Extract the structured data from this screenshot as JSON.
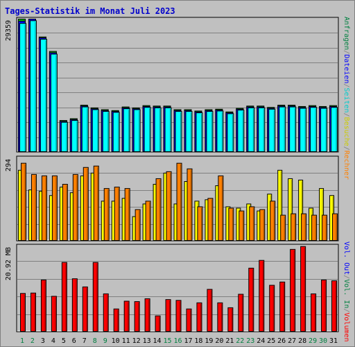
{
  "chart_data": {
    "type": "bar",
    "title": "Tages-Statistik im Monat Juli 2023",
    "categories": [
      "1",
      "2",
      "3",
      "4",
      "5",
      "6",
      "7",
      "8",
      "9",
      "10",
      "11",
      "12",
      "13",
      "14",
      "15",
      "16",
      "17",
      "18",
      "19",
      "20",
      "21",
      "22",
      "23",
      "24",
      "25",
      "26",
      "27",
      "28",
      "29",
      "30",
      "31"
    ],
    "weekend_days": [
      "1",
      "2",
      "8",
      "9",
      "15",
      "16",
      "22",
      "23",
      "29",
      "30"
    ],
    "colors": {
      "title": "#0000cc",
      "weekday_label": "#000000",
      "weekend_label": "#008040",
      "anfragen": "#00c000",
      "dateien": "#0000ff",
      "seiten": "#00ffff",
      "besuche": "#ffff00",
      "rechner": "#ff8000",
      "vol_out": "#0000ff",
      "vol_in": "#008040",
      "volumen": "#ff0000"
    },
    "right_legend": {
      "panel1": [
        {
          "text": "Anfragen",
          "color": "#008040"
        },
        {
          "text": "/",
          "color": "#808080"
        },
        {
          "text": "Dateien",
          "color": "#0000ff"
        },
        {
          "text": "/",
          "color": "#808080"
        },
        {
          "text": "Seiten",
          "color": "#00cccc"
        },
        {
          "text": "/",
          "color": "#808080"
        },
        {
          "text": "Besuche",
          "color": "#cccc00"
        },
        {
          "text": "/",
          "color": "#808080"
        },
        {
          "text": "Rechner",
          "color": "#ff8000"
        }
      ],
      "panel3": [
        {
          "text": "Vol. Out",
          "color": "#0000ff"
        },
        {
          "text": "/",
          "color": "#808080"
        },
        {
          "text": "Vol. In",
          "color": "#008040"
        },
        {
          "text": "/",
          "color": "#808080"
        },
        {
          "text": "Volumen",
          "color": "#ff0000"
        }
      ]
    },
    "panels": [
      {
        "id": "requests",
        "max_label": "29359",
        "ymax": 29359,
        "series": [
          {
            "name": "Anfragen",
            "values": [
              29359,
              29359,
              25400,
              22200,
              6900,
              7300,
              10300,
              9700,
              9300,
              9100,
              9900,
              9700,
              10200,
              10100,
              10100,
              9300,
              9300,
              9000,
              9300,
              9400,
              8800,
              9600,
              10100,
              10100,
              9800,
              10300,
              10300,
              10000,
              10200,
              10000,
              10200
            ]
          },
          {
            "name": "Dateien",
            "values": [
              28900,
              29359,
              25200,
              21900,
              6700,
              7100,
              10100,
              9500,
              9100,
              8900,
              9700,
              9500,
              10000,
              9900,
              9900,
              9100,
              9100,
              8800,
              9100,
              9200,
              8600,
              9400,
              9900,
              9900,
              9600,
              10100,
              10100,
              9800,
              10000,
              9800,
              10000
            ]
          },
          {
            "name": "Seiten",
            "values": [
              28400,
              29000,
              24900,
              21600,
              6500,
              6900,
              9900,
              9300,
              8900,
              8700,
              9500,
              9300,
              9800,
              9700,
              9700,
              8900,
              8900,
              8600,
              8900,
              9000,
              8400,
              9200,
              9700,
              9700,
              9400,
              9900,
              9900,
              9600,
              9800,
              9600,
              9800
            ]
          }
        ]
      },
      {
        "id": "visits",
        "max_label": "294",
        "ymax": 294,
        "series": [
          {
            "name": "Besuche",
            "values": [
              250,
              180,
              175,
              160,
              190,
              170,
              230,
              240,
              140,
              140,
              150,
              85,
              130,
              200,
              240,
              130,
              210,
              140,
              145,
              195,
              120,
              115,
              130,
              105,
              165,
              250,
              220,
              215,
              115,
              185,
              160
            ]
          },
          {
            "name": "Rechner",
            "values": [
              275,
              235,
              230,
              230,
              200,
              235,
              260,
              265,
              185,
              190,
              185,
              110,
              140,
              220,
              245,
              275,
              255,
              120,
              150,
              230,
              115,
              105,
              120,
              110,
              140,
              90,
              95,
              95,
              90,
              90,
              95
            ]
          }
        ]
      },
      {
        "id": "volume",
        "max_label": "20.92 MB",
        "ymax": 20.92,
        "unit": "MB",
        "series": [
          {
            "name": "Volumen",
            "values": [
              9.3,
              9.4,
              12.6,
              8.6,
              16.9,
              12.9,
              10.9,
              16.9,
              9.2,
              5.5,
              7.4,
              7.3,
              8.0,
              3.8,
              7.8,
              7.6,
              5.5,
              7.0,
              10.3,
              7.0,
              5.8,
              9.1,
              15.5,
              17.4,
              11.3,
              12.1,
              20.1,
              20.8,
              9.2,
              12.6,
              12.4
            ]
          }
        ]
      }
    ]
  }
}
